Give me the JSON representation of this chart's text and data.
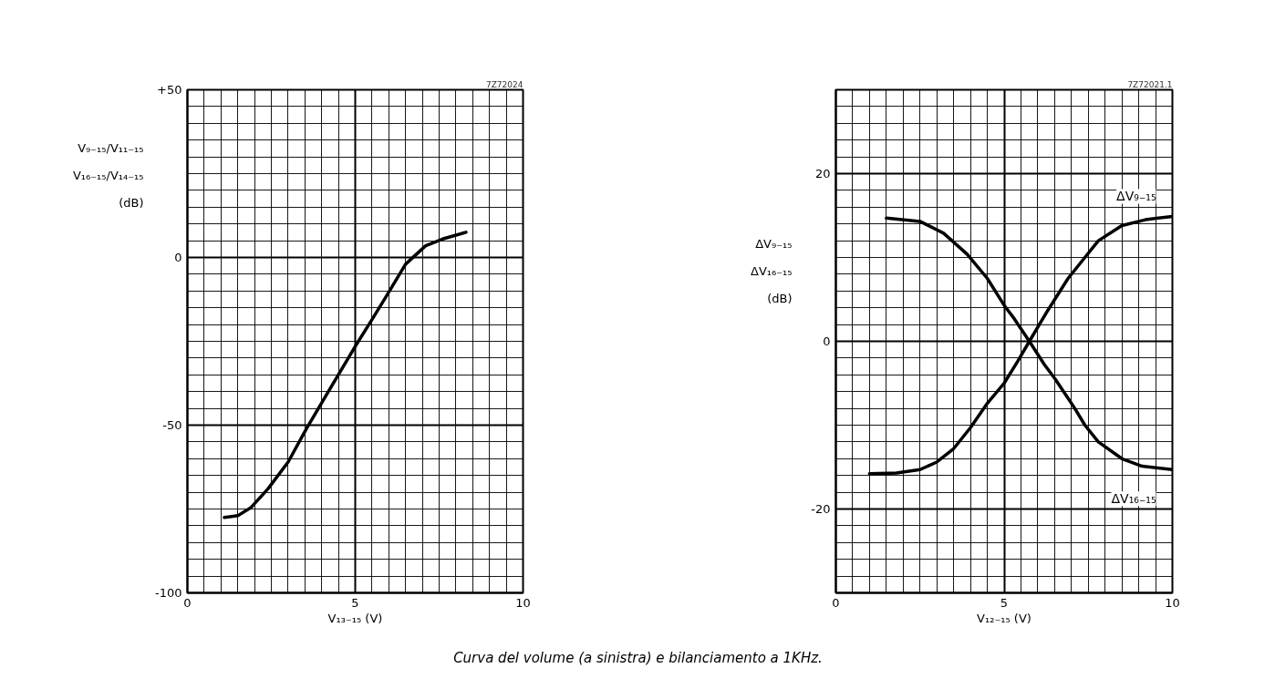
{
  "chart_data": [
    {
      "type": "line",
      "xlabel": "V₁₃₋₁₅ (V)",
      "ylabel": "V₉₋₁₅/V₁₁₋₁₅\nV₁₆₋₁₅/V₁₄₋₁₅\n(dB)",
      "annotations": [
        "7Z72024"
      ],
      "grid": true,
      "xlim": [
        0,
        10
      ],
      "ylim": [
        -100,
        50
      ],
      "xticks": [
        0,
        {
          "value": 0.5,
          "label": null
        },
        {
          "value": 1,
          "label": null
        },
        {
          "value": 1.5,
          "label": null
        },
        {
          "value": 2,
          "label": null
        },
        {
          "value": 2.5,
          "label": null
        },
        {
          "value": 3,
          "label": null
        },
        {
          "value": 3.5,
          "label": null
        },
        {
          "value": 4,
          "label": null
        },
        {
          "value": 4.5,
          "label": null
        },
        5,
        {
          "value": 5.5,
          "label": null
        },
        {
          "value": 6,
          "label": null
        },
        {
          "value": 6.5,
          "label": null
        },
        {
          "value": 7,
          "label": null
        },
        {
          "value": 7.5,
          "label": null
        },
        {
          "value": 8,
          "label": null
        },
        {
          "value": 8.5,
          "label": null
        },
        {
          "value": 9,
          "label": null
        },
        {
          "value": 9.5,
          "label": null
        },
        10
      ],
      "yticks": [
        -100,
        {
          "value": -95,
          "label": null
        },
        {
          "value": -90,
          "label": null
        },
        {
          "value": -85,
          "label": null
        },
        {
          "value": -80,
          "label": null
        },
        {
          "value": -75,
          "label": null
        },
        {
          "value": -70,
          "label": null
        },
        {
          "value": -65,
          "label": null
        },
        {
          "value": -60,
          "label": null
        },
        {
          "value": -55,
          "label": null
        },
        -50,
        {
          "value": -45,
          "label": null
        },
        {
          "value": -40,
          "label": null
        },
        {
          "value": -35,
          "label": null
        },
        {
          "value": -30,
          "label": null
        },
        {
          "value": -25,
          "label": null
        },
        {
          "value": -20,
          "label": null
        },
        {
          "value": -15,
          "label": null
        },
        {
          "value": -10,
          "label": null
        },
        {
          "value": -5,
          "label": null
        },
        0,
        {
          "value": 5,
          "label": null
        },
        {
          "value": 10,
          "label": null
        },
        {
          "value": 15,
          "label": null
        },
        {
          "value": 20,
          "label": null
        },
        {
          "value": 25,
          "label": null
        },
        {
          "value": 30,
          "label": null
        },
        {
          "value": 35,
          "label": null
        },
        {
          "value": 40,
          "label": null
        },
        {
          "value": 45,
          "label": null
        },
        {
          "value": 50,
          "label": "+50"
        }
      ],
      "series": [
        {
          "color": "#000000",
          "x": [
            1.1,
            1.5,
            1.9,
            2.4,
            3.0,
            3.55,
            4.2,
            5.0,
            5.5,
            5.9,
            6.5,
            7.1,
            7.6,
            8.3
          ],
          "values": [
            -77.5,
            -77,
            -74.5,
            -69,
            -61,
            -51,
            -40,
            -26.5,
            -18.5,
            -12,
            -2,
            3.5,
            5.5,
            7.5
          ]
        }
      ]
    },
    {
      "type": "line",
      "xlabel": "V₁₂₋₁₅ (V)",
      "ylabel": "ΔV₉₋₁₅\nΔV₁₆₋₁₅\n(dB)",
      "annotations": [
        "7Z72021.1"
      ],
      "grid": true,
      "xlim": [
        0,
        10
      ],
      "ylim": [
        -30,
        30
      ],
      "xticks": [
        0,
        {
          "value": 0.5,
          "label": null
        },
        {
          "value": 1,
          "label": null
        },
        {
          "value": 1.5,
          "label": null
        },
        {
          "value": 2,
          "label": null
        },
        {
          "value": 2.5,
          "label": null
        },
        {
          "value": 3,
          "label": null
        },
        {
          "value": 3.5,
          "label": null
        },
        {
          "value": 4,
          "label": null
        },
        {
          "value": 4.5,
          "label": null
        },
        5,
        {
          "value": 5.5,
          "label": null
        },
        {
          "value": 6,
          "label": null
        },
        {
          "value": 6.5,
          "label": null
        },
        {
          "value": 7,
          "label": null
        },
        {
          "value": 7.5,
          "label": null
        },
        {
          "value": 8,
          "label": null
        },
        {
          "value": 8.5,
          "label": null
        },
        {
          "value": 9,
          "label": null
        },
        {
          "value": 9.5,
          "label": null
        },
        10
      ],
      "yticks": [
        {
          "value": -30,
          "label": null
        },
        {
          "value": -28,
          "label": null
        },
        {
          "value": -26,
          "label": null
        },
        {
          "value": -24,
          "label": null
        },
        {
          "value": -22,
          "label": null
        },
        -20,
        {
          "value": -18,
          "label": null
        },
        {
          "value": -16,
          "label": null
        },
        {
          "value": -14,
          "label": null
        },
        {
          "value": -12,
          "label": null
        },
        {
          "value": -10,
          "label": null
        },
        {
          "value": -8,
          "label": null
        },
        {
          "value": -6,
          "label": null
        },
        {
          "value": -4,
          "label": null
        },
        {
          "value": -2,
          "label": null
        },
        0,
        {
          "value": 2,
          "label": null
        },
        {
          "value": 4,
          "label": null
        },
        {
          "value": 6,
          "label": null
        },
        {
          "value": 8,
          "label": null
        },
        {
          "value": 10,
          "label": null
        },
        {
          "value": 12,
          "label": null
        },
        {
          "value": 14,
          "label": null
        },
        {
          "value": 16,
          "label": null
        },
        {
          "value": 18,
          "label": null
        },
        20,
        {
          "value": 22,
          "label": null
        },
        {
          "value": 24,
          "label": null
        },
        {
          "value": 26,
          "label": null
        },
        {
          "value": 28,
          "label": null
        },
        {
          "value": 30,
          "label": null
        }
      ],
      "series": [
        {
          "name": "ΔV₉₋₁₅",
          "color": "#000000",
          "x": [
            1.0,
            1.8,
            2.5,
            3.0,
            3.5,
            4.0,
            4.5,
            5.0,
            5.4,
            5.75,
            6.3,
            6.9,
            7.4,
            7.8,
            8.5,
            9.2,
            10.0
          ],
          "values": [
            -15.8,
            -15.7,
            -15.3,
            -14.4,
            -12.8,
            -10.3,
            -7.4,
            -5.0,
            -2.4,
            0,
            3.7,
            7.5,
            10.0,
            12.0,
            13.8,
            14.5,
            14.9
          ]
        },
        {
          "name": "ΔV₁₆₋₁₅",
          "color": "#000000",
          "x": [
            1.5,
            2.5,
            3.2,
            3.9,
            4.5,
            5.0,
            5.3,
            5.75,
            6.2,
            6.5,
            6.8,
            7.1,
            7.4,
            7.8,
            8.5,
            9.1,
            10.0
          ],
          "values": [
            14.7,
            14.3,
            12.9,
            10.4,
            7.5,
            4.3,
            2.7,
            0,
            -2.8,
            -4.4,
            -6.2,
            -8.0,
            -10.0,
            -12.0,
            -14.0,
            -14.9,
            -15.3
          ]
        }
      ]
    },
    {
      "type": "other",
      "annotations": [
        "Curva del volume (a sinistra) e bilanciamento a 1KHz."
      ]
    }
  ]
}
